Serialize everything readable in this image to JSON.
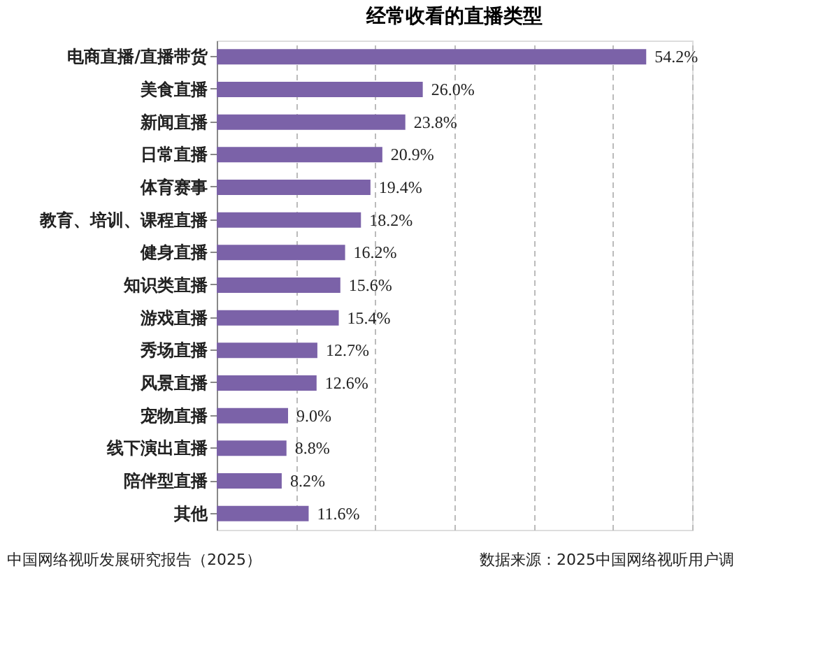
{
  "chart_data": {
    "type": "bar",
    "orientation": "horizontal",
    "title": "经常收看的直播类型",
    "categories": [
      "电商直播/直播带货",
      "美食直播",
      "新闻直播",
      "日常直播",
      "体育赛事",
      "教育、培训、课程直播",
      "健身直播",
      "知识类直播",
      "游戏直播",
      "秀场直播",
      "风景直播",
      "宠物直播",
      "线下演出直播",
      "陪伴型直播",
      "其他"
    ],
    "values": [
      54.2,
      26.0,
      23.8,
      20.9,
      19.4,
      18.2,
      16.2,
      15.6,
      15.4,
      12.7,
      12.6,
      9.0,
      8.8,
      8.2,
      11.6
    ],
    "value_labels": [
      "54.2%",
      "26.0%",
      "23.8%",
      "20.9%",
      "19.4%",
      "18.2%",
      "16.2%",
      "15.6%",
      "15.4%",
      "12.7%",
      "12.6%",
      "9.0%",
      "8.8%",
      "8.2%",
      "11.6%"
    ],
    "color": "#7b62a8",
    "xlim": [
      0,
      60
    ],
    "xticks": [
      {
        "value": 0,
        "label": null
      },
      {
        "value": 10,
        "label": null
      },
      {
        "value": 20,
        "label": null
      },
      {
        "value": 30,
        "label": null
      },
      {
        "value": 40,
        "label": null
      },
      {
        "value": 50,
        "label": null
      },
      {
        "value": 60,
        "label": null
      }
    ],
    "grid": "x",
    "line_style": "dashed",
    "tick_labels": "y",
    "annotations": [
      "中国网络视听发展研究报告（2025）",
      "数据来源：2025中国网络视听用户调"
    ]
  }
}
